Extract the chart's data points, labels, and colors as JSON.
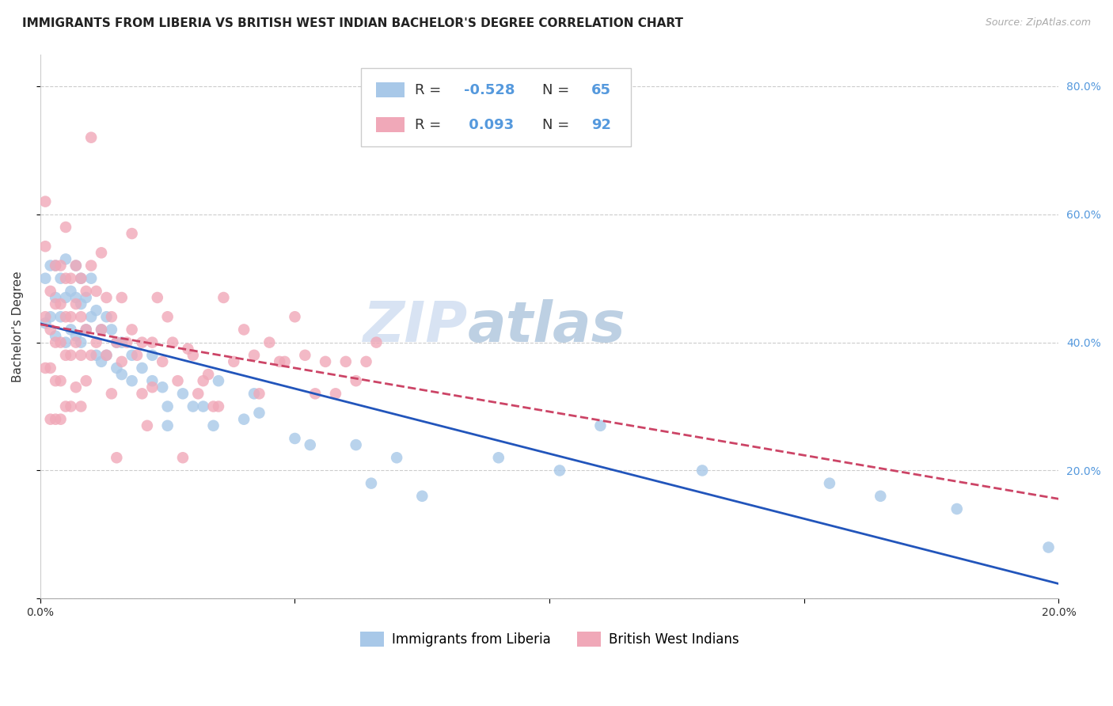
{
  "title": "IMMIGRANTS FROM LIBERIA VS BRITISH WEST INDIAN BACHELOR'S DEGREE CORRELATION CHART",
  "source": "Source: ZipAtlas.com",
  "ylabel": "Bachelor's Degree",
  "xlim": [
    0.0,
    0.2
  ],
  "ylim": [
    0.0,
    0.85
  ],
  "yticks": [
    0.0,
    0.2,
    0.4,
    0.6,
    0.8
  ],
  "ytick_labels": [
    "",
    "20.0%",
    "40.0%",
    "60.0%",
    "80.0%"
  ],
  "xticks": [
    0.0,
    0.05,
    0.1,
    0.15,
    0.2
  ],
  "xtick_labels": [
    "0.0%",
    "",
    "",
    "",
    "20.0%"
  ],
  "series": [
    {
      "name": "Immigrants from Liberia",
      "color": "#a8c8e8",
      "R": -0.528,
      "N": 65,
      "line_color": "#2255bb",
      "line_style": "solid",
      "x": [
        0.001,
        0.001,
        0.002,
        0.002,
        0.003,
        0.003,
        0.003,
        0.004,
        0.004,
        0.005,
        0.005,
        0.005,
        0.006,
        0.006,
        0.007,
        0.007,
        0.007,
        0.008,
        0.008,
        0.008,
        0.009,
        0.009,
        0.01,
        0.01,
        0.011,
        0.011,
        0.012,
        0.012,
        0.013,
        0.013,
        0.014,
        0.015,
        0.015,
        0.016,
        0.016,
        0.018,
        0.018,
        0.02,
        0.022,
        0.022,
        0.024,
        0.025,
        0.025,
        0.028,
        0.03,
        0.032,
        0.034,
        0.035,
        0.04,
        0.042,
        0.043,
        0.05,
        0.053,
        0.062,
        0.065,
        0.07,
        0.075,
        0.09,
        0.102,
        0.11,
        0.13,
        0.155,
        0.165,
        0.18,
        0.198
      ],
      "y": [
        0.5,
        0.43,
        0.52,
        0.44,
        0.52,
        0.47,
        0.41,
        0.5,
        0.44,
        0.53,
        0.47,
        0.4,
        0.48,
        0.42,
        0.52,
        0.47,
        0.41,
        0.5,
        0.46,
        0.4,
        0.47,
        0.42,
        0.5,
        0.44,
        0.45,
        0.38,
        0.42,
        0.37,
        0.44,
        0.38,
        0.42,
        0.4,
        0.36,
        0.4,
        0.35,
        0.38,
        0.34,
        0.36,
        0.38,
        0.34,
        0.33,
        0.3,
        0.27,
        0.32,
        0.3,
        0.3,
        0.27,
        0.34,
        0.28,
        0.32,
        0.29,
        0.25,
        0.24,
        0.24,
        0.18,
        0.22,
        0.16,
        0.22,
        0.2,
        0.27,
        0.2,
        0.18,
        0.16,
        0.14,
        0.08
      ]
    },
    {
      "name": "British West Indians",
      "color": "#f0a8b8",
      "R": 0.093,
      "N": 92,
      "line_color": "#cc4466",
      "line_style": "dashed",
      "x": [
        0.001,
        0.001,
        0.001,
        0.001,
        0.002,
        0.002,
        0.002,
        0.002,
        0.003,
        0.003,
        0.003,
        0.003,
        0.003,
        0.004,
        0.004,
        0.004,
        0.004,
        0.004,
        0.005,
        0.005,
        0.005,
        0.005,
        0.005,
        0.006,
        0.006,
        0.006,
        0.006,
        0.007,
        0.007,
        0.007,
        0.007,
        0.008,
        0.008,
        0.008,
        0.008,
        0.009,
        0.009,
        0.009,
        0.01,
        0.01,
        0.01,
        0.011,
        0.011,
        0.012,
        0.012,
        0.013,
        0.013,
        0.014,
        0.014,
        0.015,
        0.015,
        0.016,
        0.016,
        0.017,
        0.018,
        0.018,
        0.019,
        0.02,
        0.02,
        0.021,
        0.022,
        0.022,
        0.023,
        0.024,
        0.025,
        0.026,
        0.027,
        0.028,
        0.029,
        0.03,
        0.031,
        0.032,
        0.033,
        0.034,
        0.035,
        0.036,
        0.038,
        0.04,
        0.042,
        0.043,
        0.045,
        0.047,
        0.048,
        0.05,
        0.052,
        0.054,
        0.056,
        0.058,
        0.06,
        0.062,
        0.064,
        0.066
      ],
      "y": [
        0.62,
        0.55,
        0.44,
        0.36,
        0.48,
        0.42,
        0.36,
        0.28,
        0.52,
        0.46,
        0.4,
        0.34,
        0.28,
        0.52,
        0.46,
        0.4,
        0.34,
        0.28,
        0.58,
        0.5,
        0.44,
        0.38,
        0.3,
        0.5,
        0.44,
        0.38,
        0.3,
        0.52,
        0.46,
        0.4,
        0.33,
        0.5,
        0.44,
        0.38,
        0.3,
        0.48,
        0.42,
        0.34,
        0.72,
        0.52,
        0.38,
        0.48,
        0.4,
        0.54,
        0.42,
        0.47,
        0.38,
        0.44,
        0.32,
        0.4,
        0.22,
        0.47,
        0.37,
        0.4,
        0.57,
        0.42,
        0.38,
        0.4,
        0.32,
        0.27,
        0.4,
        0.33,
        0.47,
        0.37,
        0.44,
        0.4,
        0.34,
        0.22,
        0.39,
        0.38,
        0.32,
        0.34,
        0.35,
        0.3,
        0.3,
        0.47,
        0.37,
        0.42,
        0.38,
        0.32,
        0.4,
        0.37,
        0.37,
        0.44,
        0.38,
        0.32,
        0.37,
        0.32,
        0.37,
        0.34,
        0.37,
        0.4
      ]
    }
  ],
  "watermark_text": "ZIP",
  "watermark_text2": "atlas",
  "title_fontsize": 11,
  "label_fontsize": 11,
  "tick_fontsize": 10,
  "background_color": "#ffffff",
  "grid_color": "#cccccc",
  "ytick_color": "#5599dd",
  "legend_color": "#5599dd"
}
